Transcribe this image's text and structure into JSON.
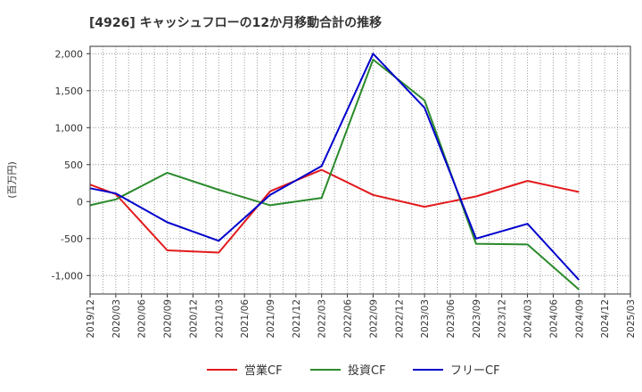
{
  "chart_data": {
    "type": "line",
    "title": "[4926]  キャッシュフローの12か月移動合計の推移",
    "xlabel": "",
    "ylabel": "(百万円)",
    "ylim": [
      -1250,
      2100
    ],
    "yticks": [
      2000,
      1500,
      1000,
      500,
      0,
      -500,
      -1000
    ],
    "ytick_labels": [
      "2,000",
      "1,500",
      "1,000",
      "500",
      "0",
      "-500",
      "-1,000"
    ],
    "categories": [
      "2019/12",
      "2020/03",
      "2020/06",
      "2020/09",
      "2020/12",
      "2021/03",
      "2021/06",
      "2021/09",
      "2021/12",
      "2022/03",
      "2022/06",
      "2022/09",
      "2022/12",
      "2023/03",
      "2023/06",
      "2023/09",
      "2023/12",
      "2024/03",
      "2024/06",
      "2024/09",
      "2024/12",
      "2025/03"
    ],
    "grid": true,
    "legend_position": "bottom",
    "series": [
      {
        "name": "営業CF",
        "color": "#e31a1c",
        "values": [
          230,
          100,
          null,
          -660,
          null,
          -690,
          null,
          140,
          null,
          430,
          null,
          90,
          null,
          -70,
          null,
          70,
          null,
          280,
          null,
          130,
          null,
          null
        ]
      },
      {
        "name": "投資CF",
        "color": "#2a8a2a",
        "values": [
          -50,
          30,
          null,
          390,
          null,
          160,
          null,
          -50,
          null,
          50,
          null,
          1920,
          null,
          1370,
          null,
          -570,
          null,
          -580,
          null,
          -1190,
          null,
          null
        ]
      },
      {
        "name": "フリーCF",
        "color": "#0000cc",
        "values": [
          180,
          110,
          null,
          -280,
          null,
          -530,
          null,
          90,
          null,
          480,
          null,
          2000,
          null,
          1270,
          null,
          -500,
          null,
          -300,
          null,
          -1060,
          null,
          null
        ]
      }
    ]
  }
}
